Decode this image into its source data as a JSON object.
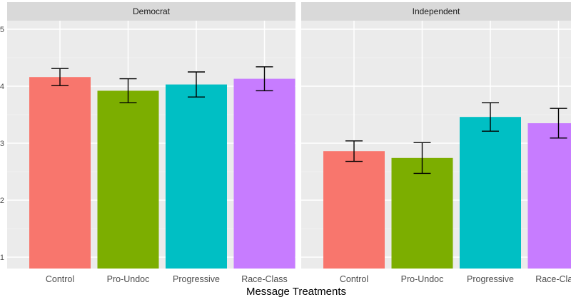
{
  "chart_data": {
    "type": "bar",
    "title": "",
    "xlabel": "Message Treatments",
    "ylabel": "",
    "ylim": [
      0.8,
      5.15
    ],
    "y_ticks": [
      "1",
      "2",
      "3",
      "4",
      "5"
    ],
    "y_tick_values": [
      1,
      2,
      3,
      4,
      5
    ],
    "categories": [
      "Control",
      "Pro-Undoc",
      "Progressive",
      "Race-Class"
    ],
    "colors": [
      "#F8766D",
      "#7CAE00",
      "#00BFC4",
      "#C77CFF"
    ],
    "panels": [
      {
        "name": "Democrat",
        "values": [
          4.16,
          3.92,
          4.03,
          4.13
        ],
        "error_low": [
          4.01,
          3.71,
          3.81,
          3.92
        ],
        "error_high": [
          4.31,
          4.13,
          4.25,
          4.34
        ]
      },
      {
        "name": "Independent",
        "values": [
          2.86,
          2.74,
          3.46,
          3.35
        ],
        "error_low": [
          2.68,
          2.47,
          3.21,
          3.09
        ],
        "error_high": [
          3.04,
          3.01,
          3.71,
          3.61
        ]
      }
    ]
  }
}
